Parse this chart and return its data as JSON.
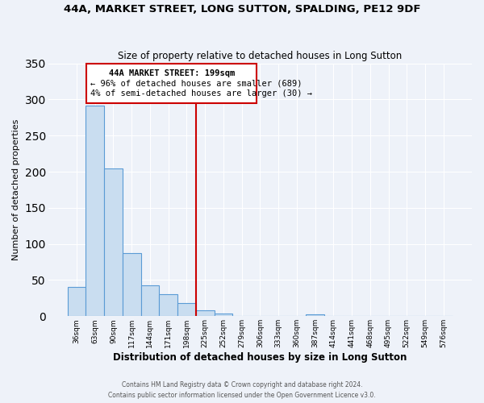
{
  "title": "44A, MARKET STREET, LONG SUTTON, SPALDING, PE12 9DF",
  "subtitle": "Size of property relative to detached houses in Long Sutton",
  "xlabel": "Distribution of detached houses by size in Long Sutton",
  "ylabel": "Number of detached properties",
  "bin_labels": [
    "36sqm",
    "63sqm",
    "90sqm",
    "117sqm",
    "144sqm",
    "171sqm",
    "198sqm",
    "225sqm",
    "252sqm",
    "279sqm",
    "306sqm",
    "333sqm",
    "360sqm",
    "387sqm",
    "414sqm",
    "441sqm",
    "468sqm",
    "495sqm",
    "522sqm",
    "549sqm",
    "576sqm"
  ],
  "bar_values": [
    41,
    291,
    204,
    87,
    43,
    30,
    18,
    8,
    4,
    0,
    0,
    0,
    0,
    3,
    0,
    0,
    0,
    0,
    0,
    0,
    0
  ],
  "bar_color": "#c9ddf0",
  "bar_edge_color": "#5b9bd5",
  "vline_x": 6.5,
  "vline_color": "#cc0000",
  "annotation_title": "44A MARKET STREET: 199sqm",
  "annotation_line1": "← 96% of detached houses are smaller (689)",
  "annotation_line2": "4% of semi-detached houses are larger (30) →",
  "annotation_box_color": "#cc0000",
  "ylim": [
    0,
    350
  ],
  "yticks": [
    0,
    50,
    100,
    150,
    200,
    250,
    300,
    350
  ],
  "footer1": "Contains HM Land Registry data © Crown copyright and database right 2024.",
  "footer2": "Contains public sector information licensed under the Open Government Licence v3.0.",
  "bg_color": "#eef2f9",
  "grid_color": "#ffffff"
}
